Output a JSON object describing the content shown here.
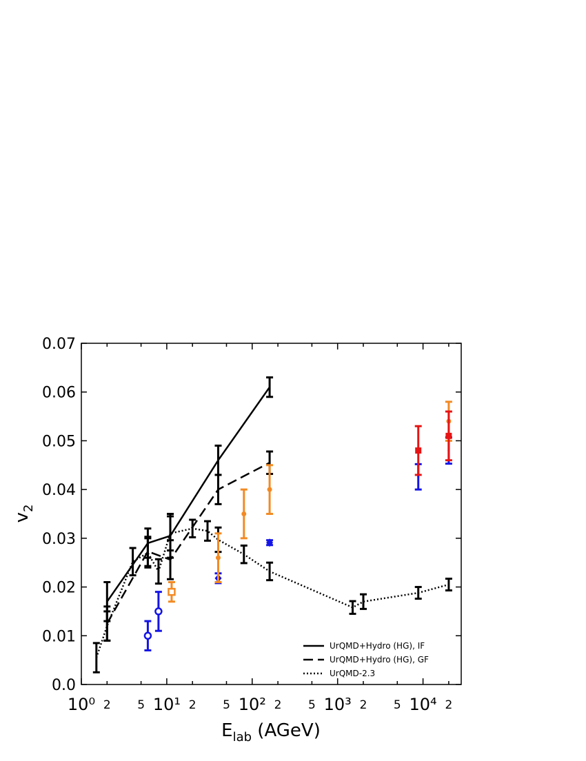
{
  "chart_data": {
    "type": "line",
    "xlabel": {
      "main": "E",
      "sub": "lab",
      "rest": " (AGeV)"
    },
    "ylabel": {
      "main": "v",
      "sub": "2"
    },
    "xscale": "log",
    "xlim": [
      1,
      28000
    ],
    "ylim": [
      0,
      0.07
    ],
    "xticks": [
      {
        "value": 1,
        "label": "10⁰"
      },
      2,
      5,
      {
        "value": 10,
        "label": "10¹"
      },
      {
        "value": 20,
        "label": "2"
      },
      {
        "value": 50,
        "label": "5"
      },
      {
        "value": 100,
        "label": "10²"
      },
      {
        "value": 200,
        "label": "2"
      },
      {
        "value": 500,
        "label": "5"
      },
      {
        "value": 1000,
        "label": "10³"
      },
      {
        "value": 2000,
        "label": "2"
      },
      {
        "value": 5000,
        "label": "5"
      },
      {
        "value": 10000,
        "label": "10⁴"
      },
      {
        "value": 20000,
        "label": "2"
      }
    ],
    "yticks": [
      {
        "value": 0,
        "label": "0.0"
      },
      0.01,
      0.02,
      0.03,
      0.04,
      0.05,
      0.06,
      0.07
    ],
    "legend_position": "lower right",
    "series": [
      {
        "name": "UrQMD+Hydro (HG), IF",
        "color": "#000000",
        "dash": "solid",
        "x": [
          2,
          6,
          11,
          40,
          160
        ],
        "values": [
          0.017,
          0.029,
          0.0305,
          0.046,
          0.061
        ],
        "errors": [
          0.004,
          0.003,
          0.0045,
          0.003,
          0.002
        ]
      },
      {
        "name": "UrQMD+Hydro (HG), GF",
        "color": "#000000",
        "dash": "dashed",
        "x": [
          2,
          6,
          11,
          40,
          160
        ],
        "values": [
          0.0125,
          0.0273,
          0.0256,
          0.04,
          0.0455
        ],
        "errors": [
          0.0035,
          0.003,
          0.004,
          0.003,
          0.0023
        ]
      },
      {
        "name": "UrQMD-2.3",
        "color": "#000000",
        "dash": "dotted",
        "x": [
          1.5,
          2,
          4,
          6,
          8,
          11,
          20,
          30,
          40,
          80,
          160,
          1500,
          2000,
          8800,
          20000
        ],
        "values": [
          0.0055,
          0.012,
          0.0252,
          0.027,
          0.0232,
          0.031,
          0.032,
          0.0315,
          0.0297,
          0.0267,
          0.0232,
          0.0158,
          0.017,
          0.0188,
          0.0205
        ],
        "errors": [
          0.003,
          0.003,
          0.0028,
          0.003,
          0.0025,
          0.0035,
          0.0018,
          0.002,
          0.0025,
          0.0018,
          0.0018,
          0.0013,
          0.0015,
          0.0012,
          0.0012
        ]
      },
      {
        "color": "#1414e6",
        "marker": "open-circle",
        "x": [
          6,
          8
        ],
        "values": [
          0.01,
          0.015
        ],
        "errors": [
          0.003,
          0.004
        ]
      },
      {
        "color": "#1414e6",
        "marker": "diamond",
        "x": [
          40,
          160
        ],
        "values": [
          0.0218,
          0.0291
        ],
        "errors": [
          0.001,
          0.0005
        ]
      },
      {
        "color": "#1414e6",
        "marker": "none",
        "x": [
          8800,
          20000
        ],
        "values": [
          0.0426,
          0.048
        ],
        "errors": [
          0.0026,
          0.0027
        ]
      },
      {
        "color": "#f28a24",
        "marker": "open-square",
        "x": [
          11.4
        ],
        "values": [
          0.019
        ],
        "errors": [
          0.002
        ]
      },
      {
        "color": "#f28a24",
        "marker": "circle",
        "x": [
          40,
          80,
          160,
          20000
        ],
        "values": [
          0.026,
          0.035,
          0.04,
          0.054
        ],
        "errors": [
          0.005,
          0.005,
          0.005,
          0.004
        ]
      },
      {
        "color": "#e61414",
        "marker": "square",
        "x": [
          8800,
          20000
        ],
        "values": [
          0.048,
          0.051
        ],
        "errors": [
          0.005,
          0.005
        ]
      }
    ]
  }
}
